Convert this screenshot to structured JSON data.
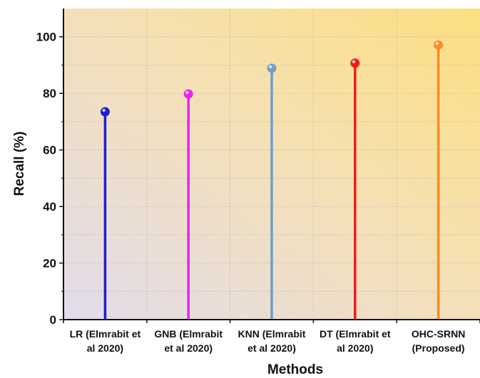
{
  "chart_data": {
    "type": "lollipop",
    "xlabel": "Methods",
    "ylabel": "Recall (%)",
    "ylim": [
      0,
      110
    ],
    "yticks": [
      0,
      20,
      40,
      60,
      80,
      100
    ],
    "categories": [
      [
        "LR (Elmrabit et",
        "al 2020)"
      ],
      [
        "GNB (Elmrabit",
        "et al 2020)"
      ],
      [
        "KNN (Elmrabit",
        "et al 2020)"
      ],
      [
        "DT (Elmrabit et",
        "al 2020)"
      ],
      [
        "OHC-SRNN",
        "(Proposed)"
      ]
    ],
    "values": [
      73.5,
      79.8,
      88.9,
      90.7,
      97.1
    ],
    "colors": [
      "#1f1fd0",
      "#ee22ee",
      "#6f9ec8",
      "#ee1c1c",
      "#ff8a1f"
    ],
    "grid": true,
    "background_gradient": [
      "#e2dcec",
      "#fddf80"
    ]
  }
}
